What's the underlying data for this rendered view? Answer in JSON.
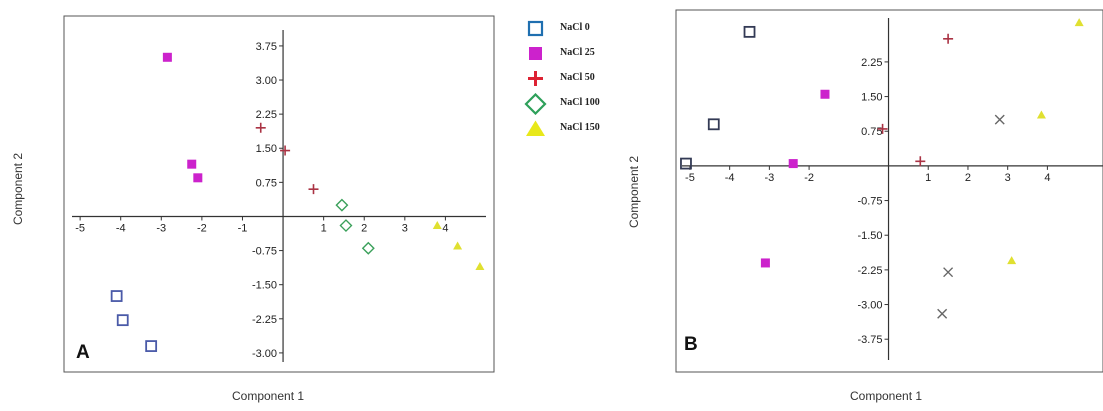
{
  "legend": {
    "items": [
      {
        "label": "NaCl 0",
        "color": "#1f6fb0",
        "marker": "square-open"
      },
      {
        "label": "NaCl 25",
        "color": "#cc22cc",
        "marker": "square-filled"
      },
      {
        "label": "NaCl 50",
        "color": "#dd2233",
        "marker": "plus"
      },
      {
        "label": "NaCl 100",
        "color": "#2ea05a",
        "marker": "diamond-open"
      },
      {
        "label": "NaCl 150",
        "color": "#e8e81a",
        "marker": "triangle-filled"
      }
    ]
  },
  "chart_data": [
    {
      "type": "scatter",
      "panel_label": "A",
      "xlabel": "Component 1",
      "ylabel": "Component 2",
      "xlim": [
        -5.2,
        5.0
      ],
      "ylim": [
        -3.2,
        4.1
      ],
      "x_ticks": [
        "-5",
        "-4",
        "-3",
        "-2",
        "-1",
        "1",
        "2",
        "3",
        "4"
      ],
      "y_ticks": [
        "3.75",
        "3.00",
        "2.25",
        "1.50",
        "0.75",
        "-0.75",
        "-1.50",
        "-2.25",
        "-3.00"
      ],
      "grid": false,
      "series": [
        {
          "name": "NaCl 0",
          "color": "#4a5aa8",
          "marker": "square-open",
          "points": [
            [
              -4.1,
              -1.75
            ],
            [
              -3.95,
              -2.28
            ],
            [
              -3.25,
              -2.85
            ]
          ]
        },
        {
          "name": "NaCl 25",
          "color": "#cc22cc",
          "marker": "square-filled",
          "points": [
            [
              -2.85,
              3.5
            ],
            [
              -2.25,
              1.15
            ],
            [
              -2.1,
              0.85
            ]
          ]
        },
        {
          "name": "NaCl 50",
          "color": "#aa3344",
          "marker": "plus",
          "points": [
            [
              -0.55,
              1.95
            ],
            [
              0.05,
              1.45
            ],
            [
              0.75,
              0.6
            ]
          ]
        },
        {
          "name": "NaCl 100",
          "color": "#3aa05a",
          "marker": "diamond-open",
          "points": [
            [
              1.45,
              0.25
            ],
            [
              1.55,
              -0.2
            ],
            [
              2.1,
              -0.7
            ]
          ]
        },
        {
          "name": "NaCl 150",
          "color": "#e0e030",
          "marker": "triangle-filled",
          "points": [
            [
              3.8,
              -0.2
            ],
            [
              4.3,
              -0.65
            ],
            [
              4.85,
              -1.1
            ]
          ]
        }
      ]
    },
    {
      "type": "scatter",
      "panel_label": "B",
      "xlabel": "Component 1",
      "ylabel": "Component 2",
      "xlim": [
        -5.2,
        5.4
      ],
      "ylim": [
        -4.2,
        3.2
      ],
      "x_ticks": [
        "-5",
        "-4",
        "-3",
        "-2",
        "1",
        "2",
        "3",
        "4"
      ],
      "y_ticks": [
        "2.25",
        "1.50",
        "0.75",
        "-0.75",
        "-1.50",
        "-2.25",
        "-3.00",
        "-3.75"
      ],
      "grid": false,
      "series": [
        {
          "name": "NaCl 0",
          "color": "#333a55",
          "marker": "square-open",
          "points": [
            [
              -3.5,
              2.9
            ],
            [
              -4.4,
              0.9
            ],
            [
              -5.1,
              0.05
            ]
          ]
        },
        {
          "name": "NaCl 25",
          "color": "#cc22cc",
          "marker": "square-filled",
          "points": [
            [
              -1.6,
              1.55
            ],
            [
              -2.4,
              0.05
            ],
            [
              -3.1,
              -2.1
            ]
          ]
        },
        {
          "name": "NaCl 50",
          "color": "#aa3344",
          "marker": "plus",
          "points": [
            [
              1.5,
              2.75
            ],
            [
              -0.15,
              0.8
            ],
            [
              0.8,
              0.1
            ]
          ]
        },
        {
          "name": "",
          "color": "#666666",
          "marker": "x",
          "points": [
            [
              2.8,
              1.0
            ],
            [
              1.5,
              -2.3
            ],
            [
              1.35,
              -3.2
            ]
          ]
        },
        {
          "name": "NaCl 150",
          "color": "#e0e030",
          "marker": "triangle-filled",
          "points": [
            [
              4.8,
              3.1
            ],
            [
              3.85,
              1.1
            ],
            [
              3.1,
              -2.05
            ]
          ]
        }
      ]
    }
  ]
}
